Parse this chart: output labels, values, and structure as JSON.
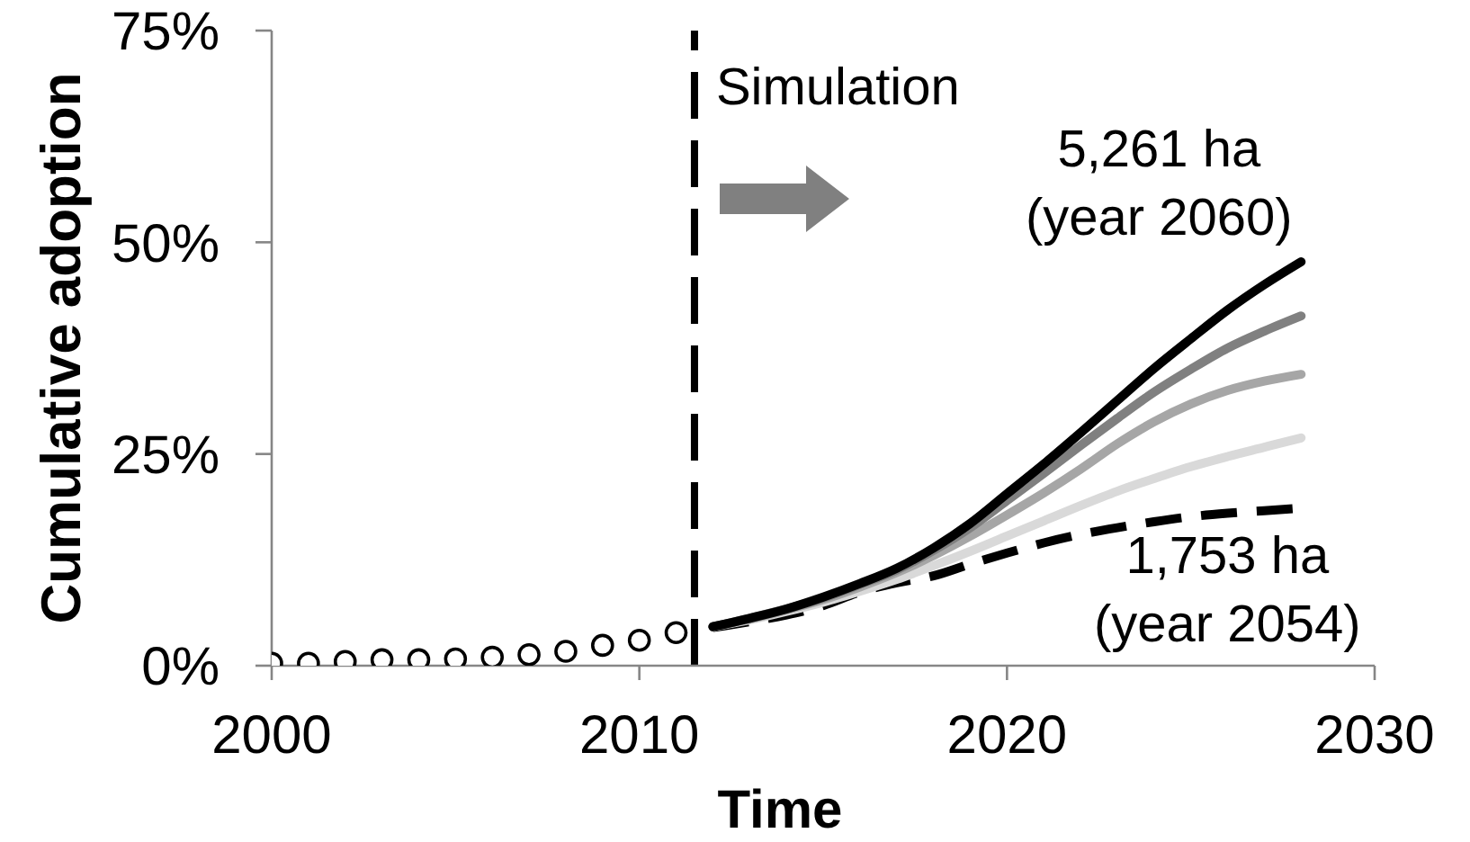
{
  "chart_data": {
    "type": "line",
    "xlabel": "Time",
    "ylabel": "Cumulative adoption",
    "xlim": [
      2000,
      2030
    ],
    "xticks": [
      2000,
      2010,
      2020,
      2030
    ],
    "ylim": [
      0,
      75
    ],
    "yticks": [
      {
        "value": 0,
        "label": "0%"
      },
      {
        "value": 25,
        "label": "25%"
      },
      {
        "value": 50,
        "label": "50%"
      },
      {
        "value": 75,
        "label": "75%"
      }
    ],
    "ref_lines": [
      {
        "axis": "x",
        "value": 2011.5,
        "label": "Simulation",
        "color": "#000000",
        "line_style": "dashed"
      }
    ],
    "annotations": [
      {
        "text": "5,261 ha\n(year 2060)",
        "x": 2028,
        "y": 47.7
      },
      {
        "text": "1,753 ha\n(year 2054)",
        "x": 2028,
        "y": 18.6
      }
    ],
    "series": [
      {
        "type": "scatter",
        "marker": "circle",
        "color": "#000000",
        "x": [
          2000,
          2001,
          2002,
          2003,
          2004,
          2005,
          2006,
          2007,
          2008,
          2009,
          2010,
          2011
        ],
        "values": [
          0.3,
          0.3,
          0.5,
          0.7,
          0.7,
          0.8,
          1.0,
          1.3,
          1.7,
          2.4,
          3.0,
          3.9
        ]
      },
      {
        "color": "#000000",
        "line_style": "dashed",
        "x": [
          2012,
          2013,
          2014,
          2015,
          2016,
          2017,
          2018,
          2019,
          2020,
          2021,
          2022,
          2023,
          2024,
          2025,
          2026,
          2027,
          2028
        ],
        "values": [
          4.5,
          5.2,
          6.0,
          7.1,
          8.7,
          9.8,
          10.6,
          12.0,
          13.3,
          14.5,
          15.5,
          16.3,
          17.0,
          17.6,
          18.0,
          18.3,
          18.6
        ]
      },
      {
        "color": "#d9d9d9",
        "x": [
          2012,
          2013,
          2014,
          2015,
          2016,
          2017,
          2018,
          2019,
          2020,
          2021,
          2022,
          2023,
          2024,
          2025,
          2026,
          2027,
          2028
        ],
        "values": [
          4.6,
          5.4,
          6.4,
          7.5,
          8.8,
          10.2,
          11.8,
          13.5,
          15.3,
          17.1,
          18.9,
          20.6,
          22.1,
          23.5,
          24.7,
          25.8,
          26.9
        ]
      },
      {
        "color": "#a6a6a6",
        "x": [
          2012,
          2013,
          2014,
          2015,
          2016,
          2017,
          2018,
          2019,
          2020,
          2021,
          2022,
          2023,
          2024,
          2025,
          2026,
          2027,
          2028
        ],
        "values": [
          4.6,
          5.5,
          6.6,
          7.8,
          9.3,
          11.0,
          13.0,
          15.3,
          17.8,
          20.4,
          23.2,
          26.2,
          28.8,
          30.9,
          32.5,
          33.6,
          34.4
        ]
      },
      {
        "color": "#808080",
        "x": [
          2012,
          2013,
          2014,
          2015,
          2016,
          2017,
          2018,
          2019,
          2020,
          2021,
          2022,
          2023,
          2024,
          2025,
          2026,
          2027,
          2028
        ],
        "values": [
          4.6,
          5.6,
          6.7,
          8.0,
          9.6,
          11.3,
          13.6,
          16.3,
          19.5,
          22.7,
          26.0,
          29.2,
          32.3,
          35.0,
          37.5,
          39.5,
          41.3
        ]
      },
      {
        "color": "#000000",
        "x": [
          2012,
          2013,
          2014,
          2015,
          2016,
          2017,
          2018,
          2019,
          2020,
          2021,
          2022,
          2023,
          2024,
          2025,
          2026,
          2027,
          2028
        ],
        "values": [
          4.6,
          5.6,
          6.7,
          8.1,
          9.7,
          11.5,
          13.9,
          16.8,
          20.3,
          23.8,
          27.5,
          31.3,
          35.1,
          38.6,
          42.0,
          45.0,
          47.7
        ]
      }
    ]
  }
}
